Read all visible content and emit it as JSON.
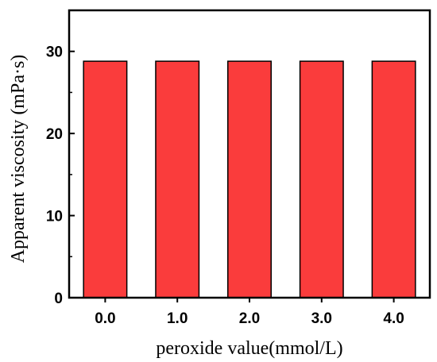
{
  "chart_data": {
    "type": "bar",
    "categories": [
      "0.0",
      "1.0",
      "2.0",
      "3.0",
      "4.0"
    ],
    "values": [
      28.8,
      28.8,
      28.8,
      28.8,
      28.8
    ],
    "xlabel": "peroxide value(mmol/L)",
    "ylabel": "Apparent viscosity (mPa·s)",
    "ylim": [
      0,
      35
    ],
    "yticks": [
      0,
      10,
      20,
      30
    ],
    "grid": false,
    "bar_color": "#fa3c3c",
    "edge_color": "#000000"
  }
}
